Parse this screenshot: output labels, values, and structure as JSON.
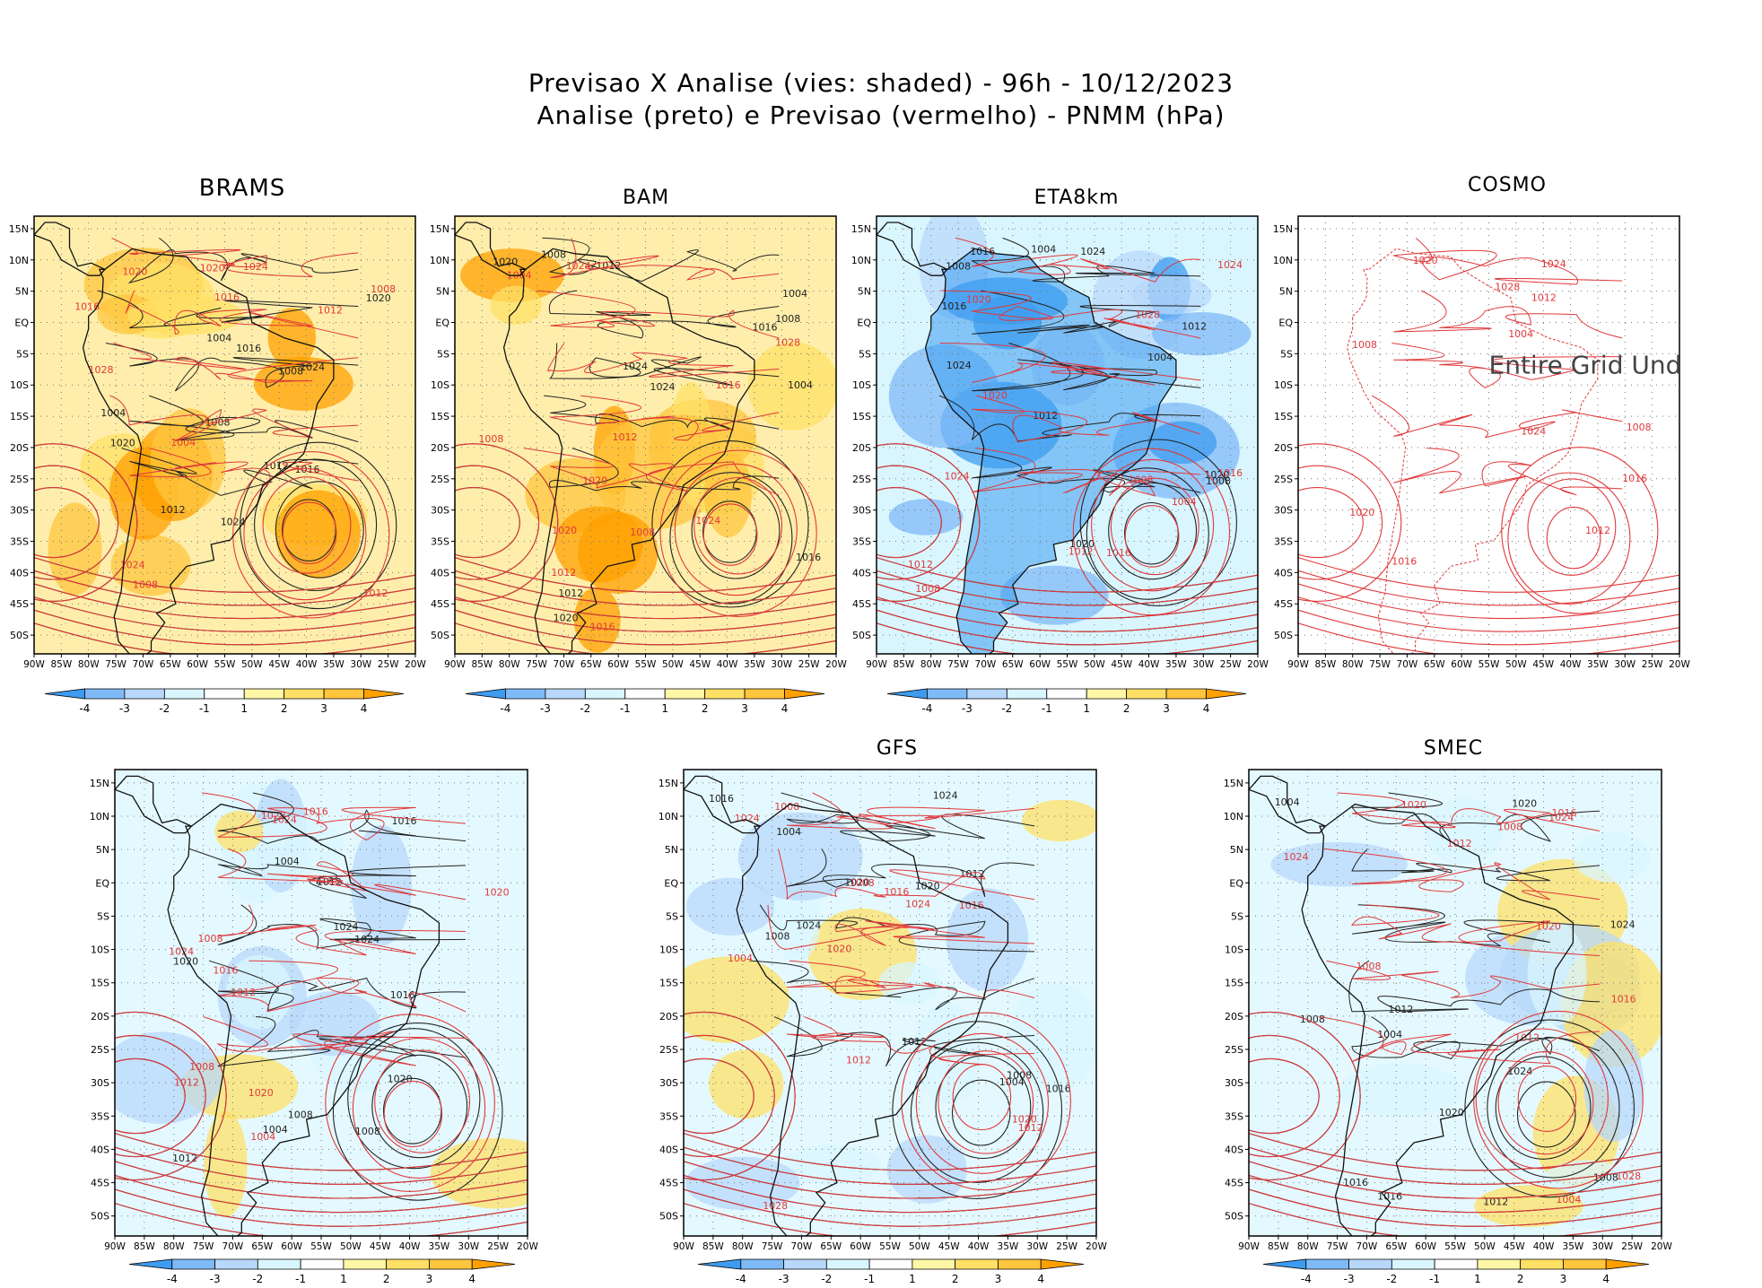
{
  "title": {
    "line1": "Previsao X Analise (vies: shaded) - 96h - 10/12/2023",
    "line2": "Analise (preto) e Previsao (vermelho) - PNMM (hPa)"
  },
  "axes": {
    "lat_labels": [
      "15N",
      "10N",
      "5N",
      "EQ",
      "5S",
      "10S",
      "15S",
      "20S",
      "25S",
      "30S",
      "35S",
      "40S",
      "45S",
      "50S"
    ],
    "lon_labels": [
      "90W",
      "85W",
      "80W",
      "75W",
      "70W",
      "65W",
      "60W",
      "55W",
      "50W",
      "45W",
      "40W",
      "35W",
      "30W",
      "25W",
      "20W"
    ]
  },
  "colorbar": {
    "labels": [
      "-4",
      "-3",
      "-2",
      "-1",
      "1",
      "2",
      "3",
      "4"
    ],
    "colors": [
      "#3d9cf0",
      "#7fbaf7",
      "#b8d8fb",
      "#d9f6ff",
      "#ffffff",
      "#fff7a6",
      "#ffe066",
      "#ffc53d",
      "#ffa000"
    ]
  },
  "colors": {
    "analysis_contour": "#222222",
    "forecast_contour": "#e0383a",
    "gridline": "#777777",
    "coast": "#111111"
  },
  "panels": [
    {
      "name": "BRAMS",
      "bias": "warm",
      "note": ""
    },
    {
      "name": "BAM",
      "bias": "warm",
      "note": ""
    },
    {
      "name": "ETA8km",
      "bias": "cold",
      "note": ""
    },
    {
      "name": "COSMO",
      "bias": "none",
      "note": "Entire Grid Und"
    },
    {
      "name": "",
      "bias": "mixed",
      "note": ""
    },
    {
      "name": "GFS",
      "bias": "mixed",
      "note": ""
    },
    {
      "name": "SMEC",
      "bias": "mixed",
      "note": ""
    }
  ],
  "contour_labels": {
    "analysis": [
      "1008",
      "1012",
      "1016",
      "1020",
      "1024",
      "1004"
    ],
    "forecast": [
      "1008",
      "1012",
      "1016",
      "1020",
      "1024",
      "1028",
      "1004"
    ]
  }
}
